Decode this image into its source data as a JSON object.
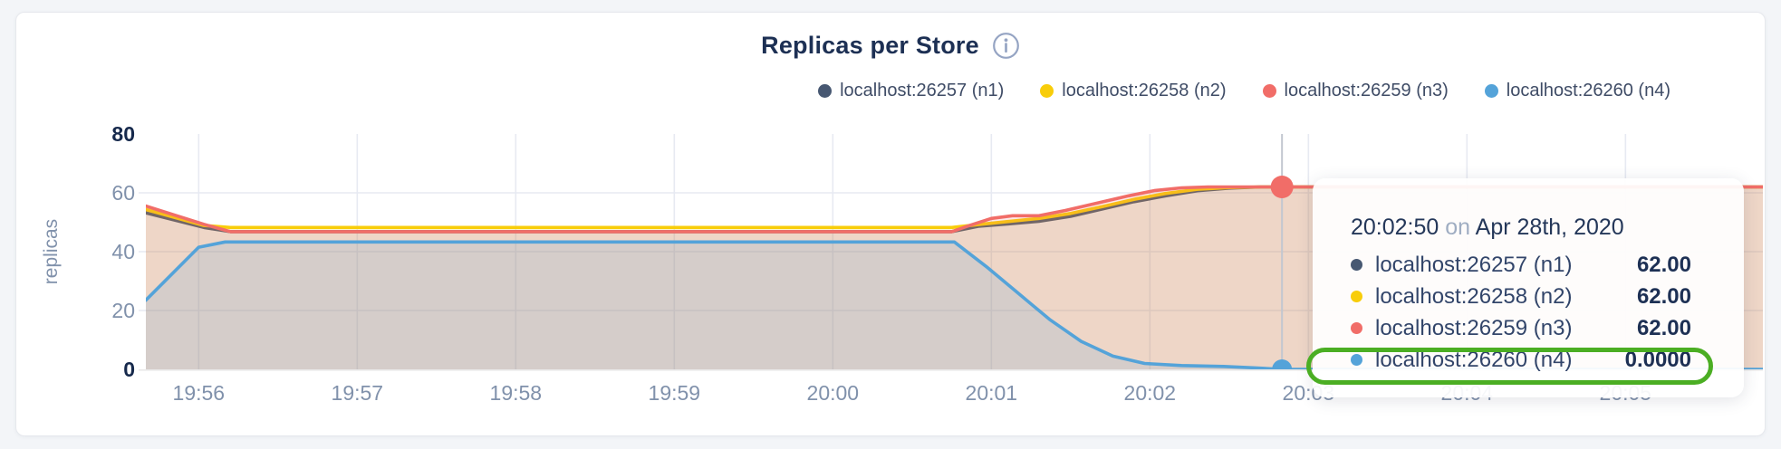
{
  "card": {
    "title": "Replicas per Store"
  },
  "chart_data": {
    "type": "area",
    "title": "Replicas per Store",
    "xlabel": "",
    "ylabel": "replicas",
    "ylim": [
      0,
      80
    ],
    "x_domain_seconds": [
      0,
      612
    ],
    "grid": true,
    "legend_position": "top-right",
    "x_ticks": [
      {
        "t": 20,
        "label": "19:56"
      },
      {
        "t": 80,
        "label": "19:57"
      },
      {
        "t": 140,
        "label": "19:58"
      },
      {
        "t": 200,
        "label": "19:59"
      },
      {
        "t": 260,
        "label": "20:00"
      },
      {
        "t": 320,
        "label": "20:01"
      },
      {
        "t": 380,
        "label": "20:02"
      },
      {
        "t": 440,
        "label": "20:03"
      },
      {
        "t": 500,
        "label": "20:04"
      },
      {
        "t": 560,
        "label": "20:05"
      }
    ],
    "y_ticks": [
      {
        "value": 0,
        "emphasis": true,
        "grid": false
      },
      {
        "value": 20,
        "emphasis": false,
        "grid": true
      },
      {
        "value": 40,
        "emphasis": false,
        "grid": true
      },
      {
        "value": 60,
        "emphasis": false,
        "grid": true
      },
      {
        "value": 80,
        "emphasis": true,
        "grid": false
      }
    ],
    "series": [
      {
        "name": "localhost:26257 (n1)",
        "color": "#475872",
        "fill": "rgba(71,88,114,0.10)",
        "points": [
          [
            0,
            53.2
          ],
          [
            22,
            48.2
          ],
          [
            32,
            46.8
          ],
          [
            305,
            46.8
          ],
          [
            315,
            48.6
          ],
          [
            326,
            49.4
          ],
          [
            338,
            50.3
          ],
          [
            350,
            52
          ],
          [
            362,
            54.5
          ],
          [
            374,
            57
          ],
          [
            386,
            59
          ],
          [
            398,
            60.7
          ],
          [
            410,
            61.6
          ],
          [
            422,
            62
          ],
          [
            612,
            62
          ]
        ]
      },
      {
        "name": "localhost:26258 (n2)",
        "color": "#f8cd0a",
        "fill": "rgba(248,205,10,0.10)",
        "points": [
          [
            0,
            54.3
          ],
          [
            22,
            48.9
          ],
          [
            32,
            48.2
          ],
          [
            305,
            48.2
          ],
          [
            315,
            49.2
          ],
          [
            326,
            50.2
          ],
          [
            338,
            51.3
          ],
          [
            350,
            53
          ],
          [
            362,
            55.3
          ],
          [
            374,
            57.8
          ],
          [
            386,
            59.8
          ],
          [
            398,
            61.2
          ],
          [
            410,
            61.8
          ],
          [
            422,
            62
          ],
          [
            612,
            62
          ]
        ]
      },
      {
        "name": "localhost:26259 (n3)",
        "color": "#f16d68",
        "fill": "rgba(241,109,104,0.16)",
        "points": [
          [
            0,
            55.5
          ],
          [
            22,
            49.3
          ],
          [
            32,
            46.8
          ],
          [
            305,
            46.8
          ],
          [
            312,
            49
          ],
          [
            320,
            51.3
          ],
          [
            328,
            52.2
          ],
          [
            338,
            52.2
          ],
          [
            348,
            54
          ],
          [
            360,
            56.5
          ],
          [
            372,
            59
          ],
          [
            382,
            60.8
          ],
          [
            392,
            61.7
          ],
          [
            402,
            62
          ],
          [
            612,
            62
          ]
        ]
      },
      {
        "name": "localhost:26260 (n4)",
        "color": "#54a3d9",
        "fill": "rgba(84,163,217,0.16)",
        "points": [
          [
            0,
            23.5
          ],
          [
            20,
            41.5
          ],
          [
            30,
            43.3
          ],
          [
            306,
            43.3
          ],
          [
            318,
            35
          ],
          [
            330,
            26
          ],
          [
            342,
            17
          ],
          [
            354,
            9.5
          ],
          [
            366,
            4.5
          ],
          [
            378,
            2
          ],
          [
            392,
            1.3
          ],
          [
            408,
            1
          ],
          [
            420,
            0.5
          ],
          [
            430,
            0
          ],
          [
            612,
            0
          ]
        ]
      }
    ],
    "hover": {
      "t": 430,
      "dots": [
        {
          "series": 2,
          "value": 62,
          "r": 12.5
        },
        {
          "series": 3,
          "value": 0,
          "r": 11
        }
      ]
    },
    "colors": {
      "grid": "#e7eaf2",
      "baseline": "#e6e4e4",
      "crosshair": "#c2c7d0",
      "axis_label": "#8091ab",
      "axis_label_strong": "#16294c"
    }
  },
  "tooltip": {
    "time": "20:02:50",
    "conjunction": "on",
    "date": "Apr 28th, 2020",
    "rows": [
      {
        "label": "localhost:26257 (n1)",
        "value": "62.00",
        "color": "#475872",
        "highlighted": false
      },
      {
        "label": "localhost:26258 (n2)",
        "value": "62.00",
        "color": "#f8cd0a",
        "highlighted": false
      },
      {
        "label": "localhost:26259 (n3)",
        "value": "62.00",
        "color": "#f16d68",
        "highlighted": false
      },
      {
        "label": "localhost:26260 (n4)",
        "value": "0.0000",
        "color": "#54a3d9",
        "highlighted": true
      }
    ],
    "highlight_color": "#4bae23"
  }
}
